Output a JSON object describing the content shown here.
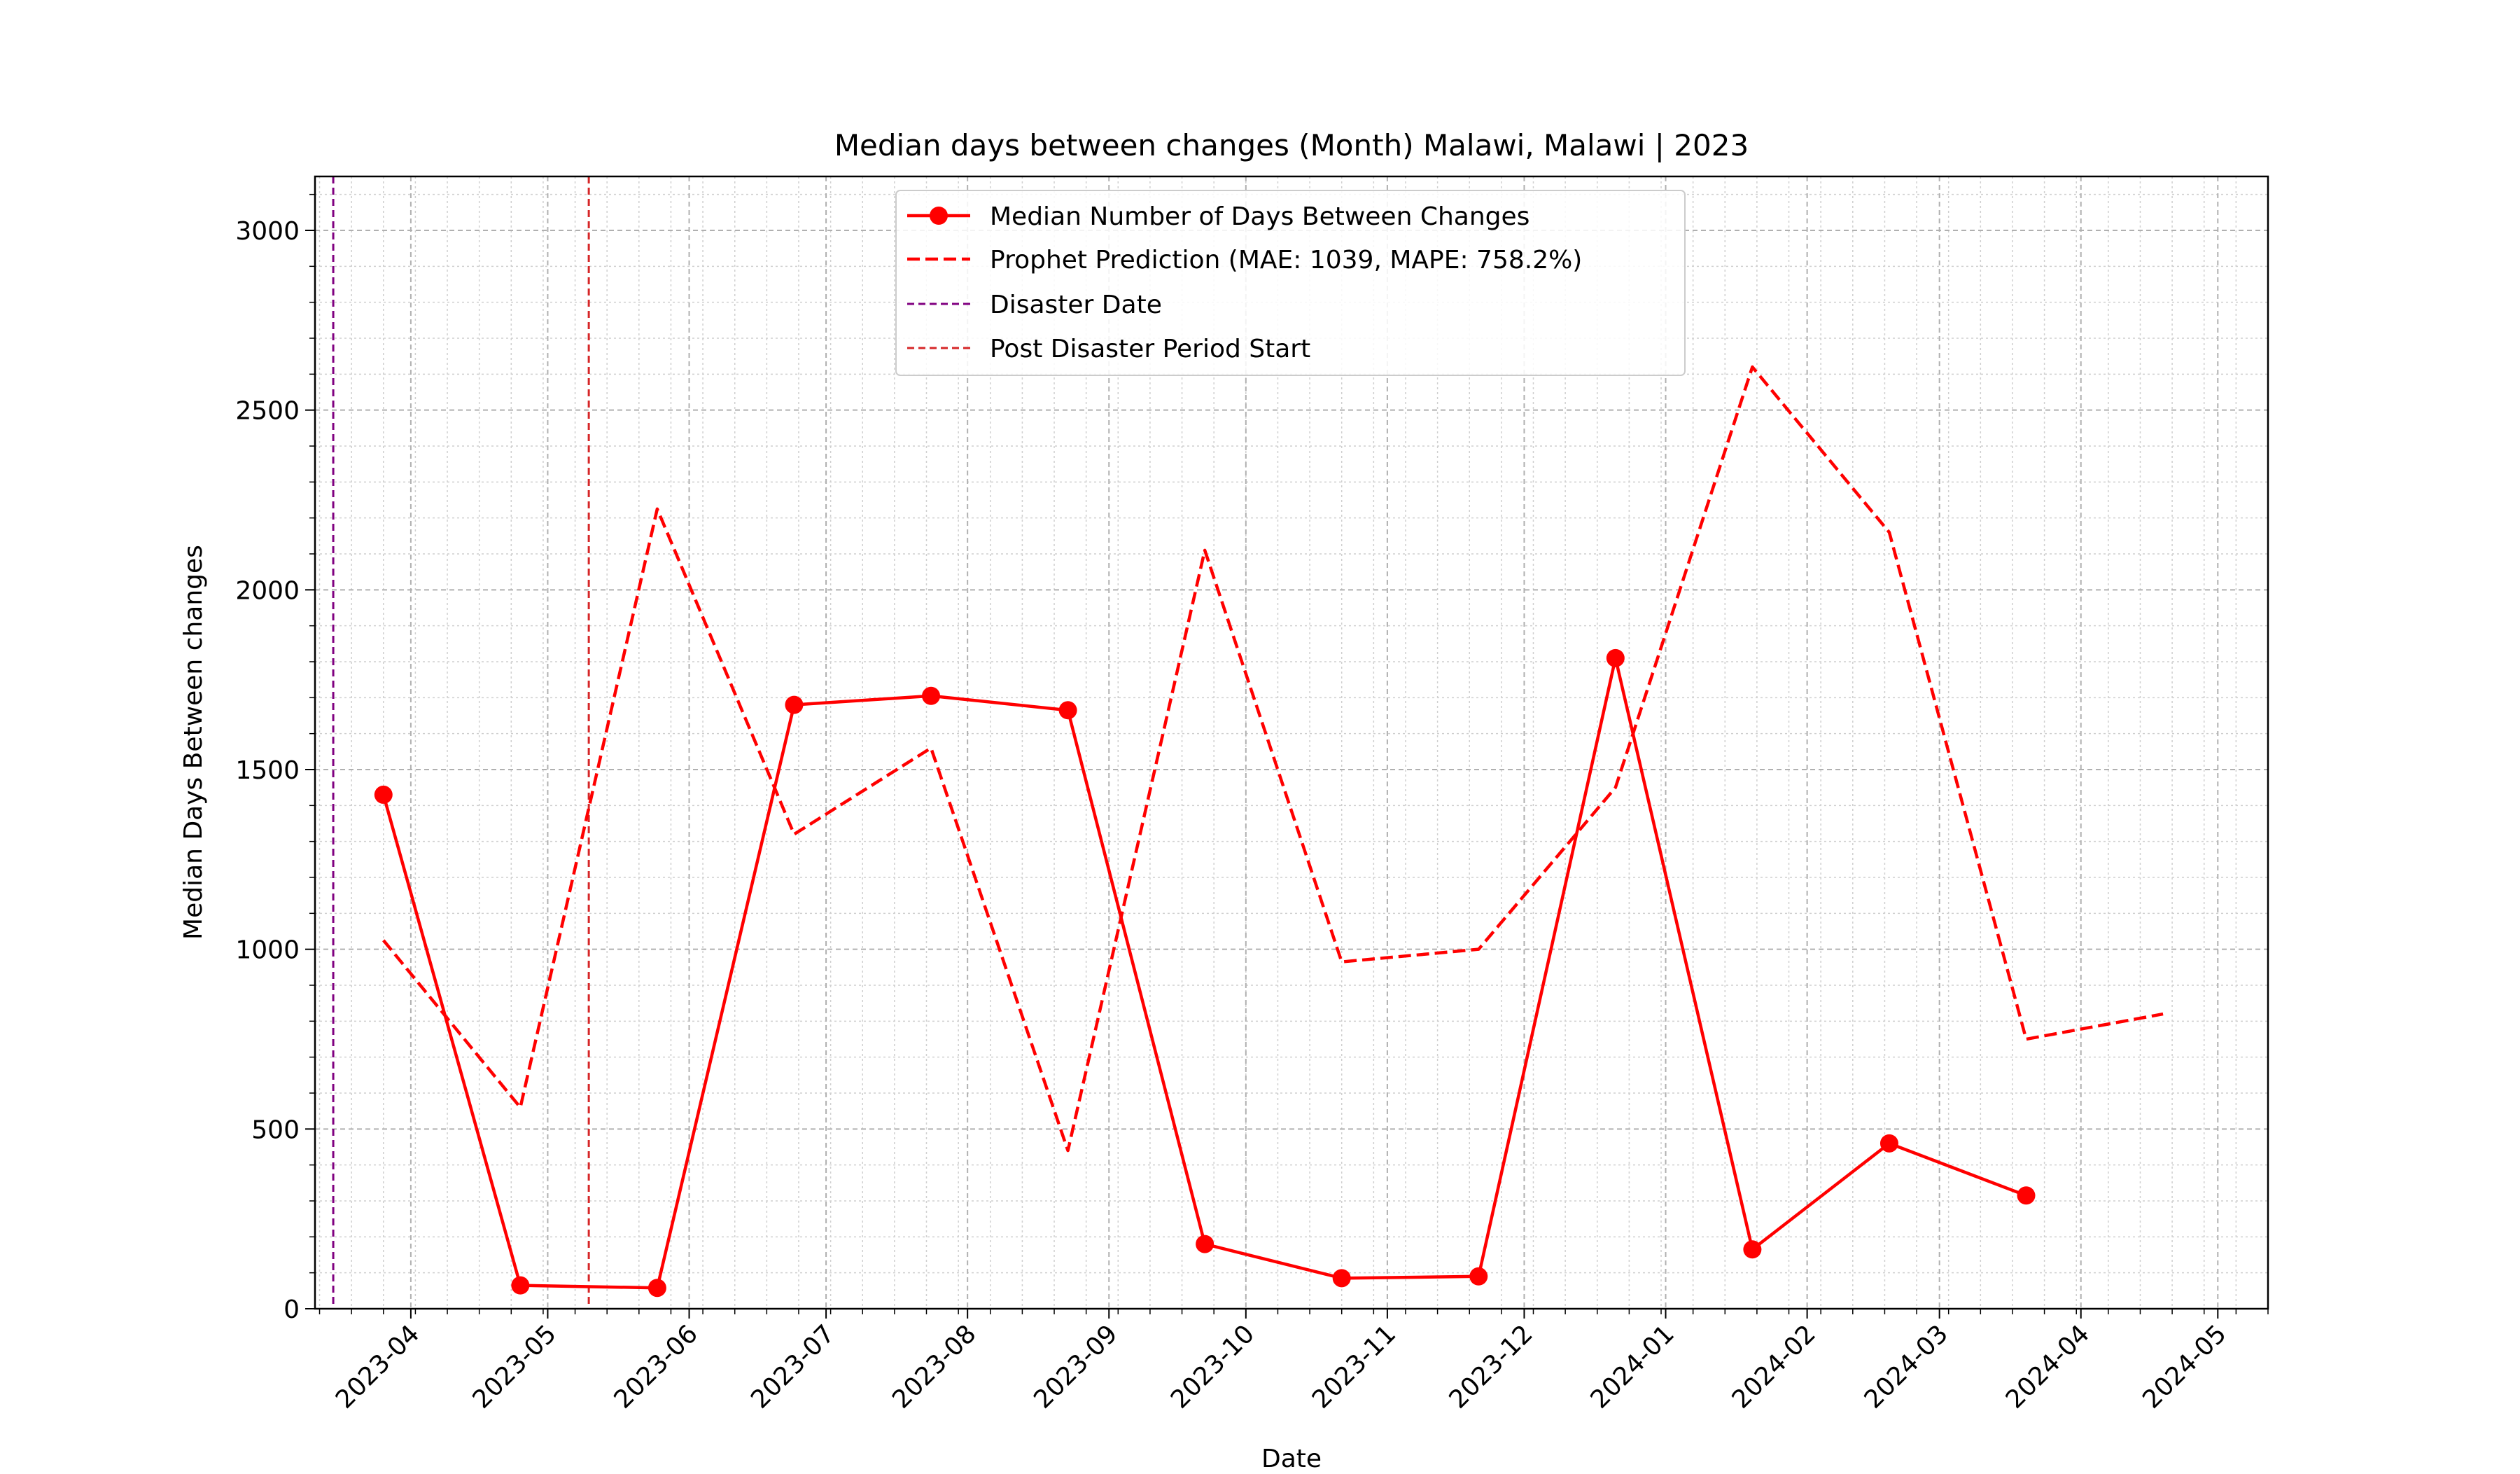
{
  "chart_data": {
    "type": "line",
    "title": "Median days between changes (Month) Malawi, Malawi | 2023",
    "xlabel": "Date",
    "ylabel": "Median Days Between changes",
    "xlim": [
      "2023-03-11",
      "2024-05-12"
    ],
    "ylim": [
      0,
      3150
    ],
    "grid": true,
    "legend_position": "top-center",
    "x_ticks": [
      "2023-04",
      "2023-05",
      "2023-06",
      "2023-07",
      "2023-08",
      "2023-09",
      "2023-10",
      "2023-11",
      "2023-12",
      "2024-01",
      "2024-02",
      "2024-03",
      "2024-04",
      "2024-05"
    ],
    "y_ticks": [
      0,
      500,
      1000,
      1500,
      2000,
      2500,
      3000
    ],
    "series": [
      {
        "name": "Median Number of Days Between Changes",
        "style": "solid-marker",
        "color": "#ff0000",
        "x": [
          "2023-03-26",
          "2023-04-25",
          "2023-05-25",
          "2023-06-24",
          "2023-07-24",
          "2023-08-23",
          "2023-09-22",
          "2023-10-22",
          "2023-11-21",
          "2023-12-21",
          "2024-01-20",
          "2024-02-19",
          "2024-03-20"
        ],
        "y": [
          1430,
          65,
          58,
          1680,
          1705,
          1665,
          180,
          85,
          90,
          1810,
          165,
          460,
          315
        ]
      },
      {
        "name": "Prophet Prediction (MAE: 1039, MAPE: 758.2%)",
        "style": "dashed",
        "color": "#ff0000",
        "x": [
          "2023-03-26",
          "2023-04-25",
          "2023-05-25",
          "2023-06-24",
          "2023-07-24",
          "2023-08-23",
          "2023-09-22",
          "2023-10-22",
          "2023-11-21",
          "2023-12-21",
          "2024-01-20",
          "2024-02-19",
          "2024-03-20",
          "2024-04-19"
        ],
        "y": [
          1025,
          560,
          2225,
          1320,
          1560,
          440,
          2110,
          965,
          1000,
          1450,
          2620,
          2160,
          750,
          820
        ]
      }
    ],
    "vlines": [
      {
        "name": "Disaster Date",
        "x": "2023-03-15",
        "color": "#800080"
      },
      {
        "name": "Post Disaster Period Start",
        "x": "2023-05-10",
        "color": "#d62728"
      }
    ]
  }
}
